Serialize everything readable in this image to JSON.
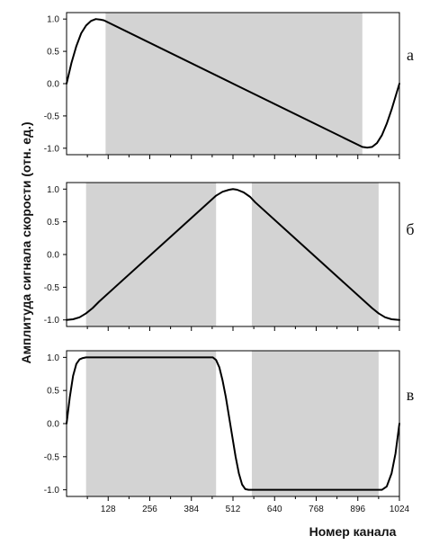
{
  "colors": {
    "shade": "#d3d3d3",
    "line": "#000000",
    "frame": "#000000"
  },
  "ylabel": "Амплитуда сигнала скорости (отн. ед.)",
  "xlabel": "Номер канала",
  "chart_data": [
    {
      "type": "line",
      "panel_label": "а",
      "xlim": [
        0,
        1024
      ],
      "ylim": [
        -1.1,
        1.1
      ],
      "yticks": [
        "1.0",
        "0.5",
        "0.0",
        "-0.5",
        "-1.0"
      ],
      "ytick_values": [
        1.0,
        0.5,
        0.0,
        -0.5,
        -1.0
      ],
      "xtick_values": [
        128,
        256,
        384,
        512,
        640,
        768,
        896,
        1024
      ],
      "show_xtick_labels": false,
      "shaded_ranges": [
        [
          120,
          910
        ]
      ],
      "x": [
        0,
        15,
        30,
        45,
        60,
        75,
        90,
        105,
        115,
        512,
        910,
        925,
        940,
        955,
        970,
        985,
        1000,
        1015,
        1024
      ],
      "y": [
        0.0,
        0.32,
        0.58,
        0.78,
        0.9,
        0.97,
        1.0,
        0.99,
        0.98,
        0.0,
        -0.98,
        -0.99,
        -0.98,
        -0.92,
        -0.8,
        -0.62,
        -0.4,
        -0.15,
        0.0
      ]
    },
    {
      "type": "line",
      "panel_label": "б",
      "xlim": [
        0,
        1024
      ],
      "ylim": [
        -1.1,
        1.1
      ],
      "yticks": [
        "1.0",
        "0.5",
        "0.0",
        "-0.5",
        "-1.0"
      ],
      "ytick_values": [
        1.0,
        0.5,
        0.0,
        -0.5,
        -1.0
      ],
      "xtick_values": [
        128,
        256,
        384,
        512,
        640,
        768,
        896,
        1024
      ],
      "show_xtick_labels": false,
      "shaded_ranges": [
        [
          60,
          460
        ],
        [
          570,
          960
        ]
      ],
      "x": [
        0,
        20,
        40,
        60,
        80,
        100,
        460,
        480,
        500,
        512,
        525,
        545,
        565,
        580,
        940,
        960,
        980,
        1000,
        1024
      ],
      "y": [
        -1.0,
        -0.99,
        -0.96,
        -0.9,
        -0.82,
        -0.72,
        0.9,
        0.96,
        0.99,
        1.0,
        0.99,
        0.95,
        0.88,
        0.8,
        -0.82,
        -0.9,
        -0.96,
        -0.99,
        -1.0
      ]
    },
    {
      "type": "line",
      "panel_label": "в",
      "xlim": [
        0,
        1024
      ],
      "ylim": [
        -1.1,
        1.1
      ],
      "yticks": [
        "1.0",
        "0.5",
        "0.0",
        "-0.5",
        "-1.0"
      ],
      "ytick_values": [
        1.0,
        0.5,
        0.0,
        -0.5,
        -1.0
      ],
      "xtick_values": [
        128,
        256,
        384,
        512,
        640,
        768,
        896,
        1024
      ],
      "xtick_labels": [
        "128",
        "256",
        "384",
        "512",
        "640",
        "768",
        "896",
        "1024"
      ],
      "show_xtick_labels": true,
      "shaded_ranges": [
        [
          60,
          460
        ],
        [
          570,
          960
        ]
      ],
      "x": [
        0,
        10,
        20,
        30,
        40,
        50,
        60,
        450,
        460,
        470,
        480,
        490,
        500,
        510,
        520,
        530,
        540,
        550,
        560,
        970,
        985,
        1000,
        1012,
        1024
      ],
      "y": [
        0.0,
        0.4,
        0.72,
        0.9,
        0.97,
        0.99,
        1.0,
        1.0,
        0.96,
        0.85,
        0.65,
        0.4,
        0.1,
        -0.2,
        -0.5,
        -0.75,
        -0.92,
        -0.99,
        -1.0,
        -1.0,
        -0.95,
        -0.75,
        -0.45,
        0.0
      ]
    }
  ]
}
